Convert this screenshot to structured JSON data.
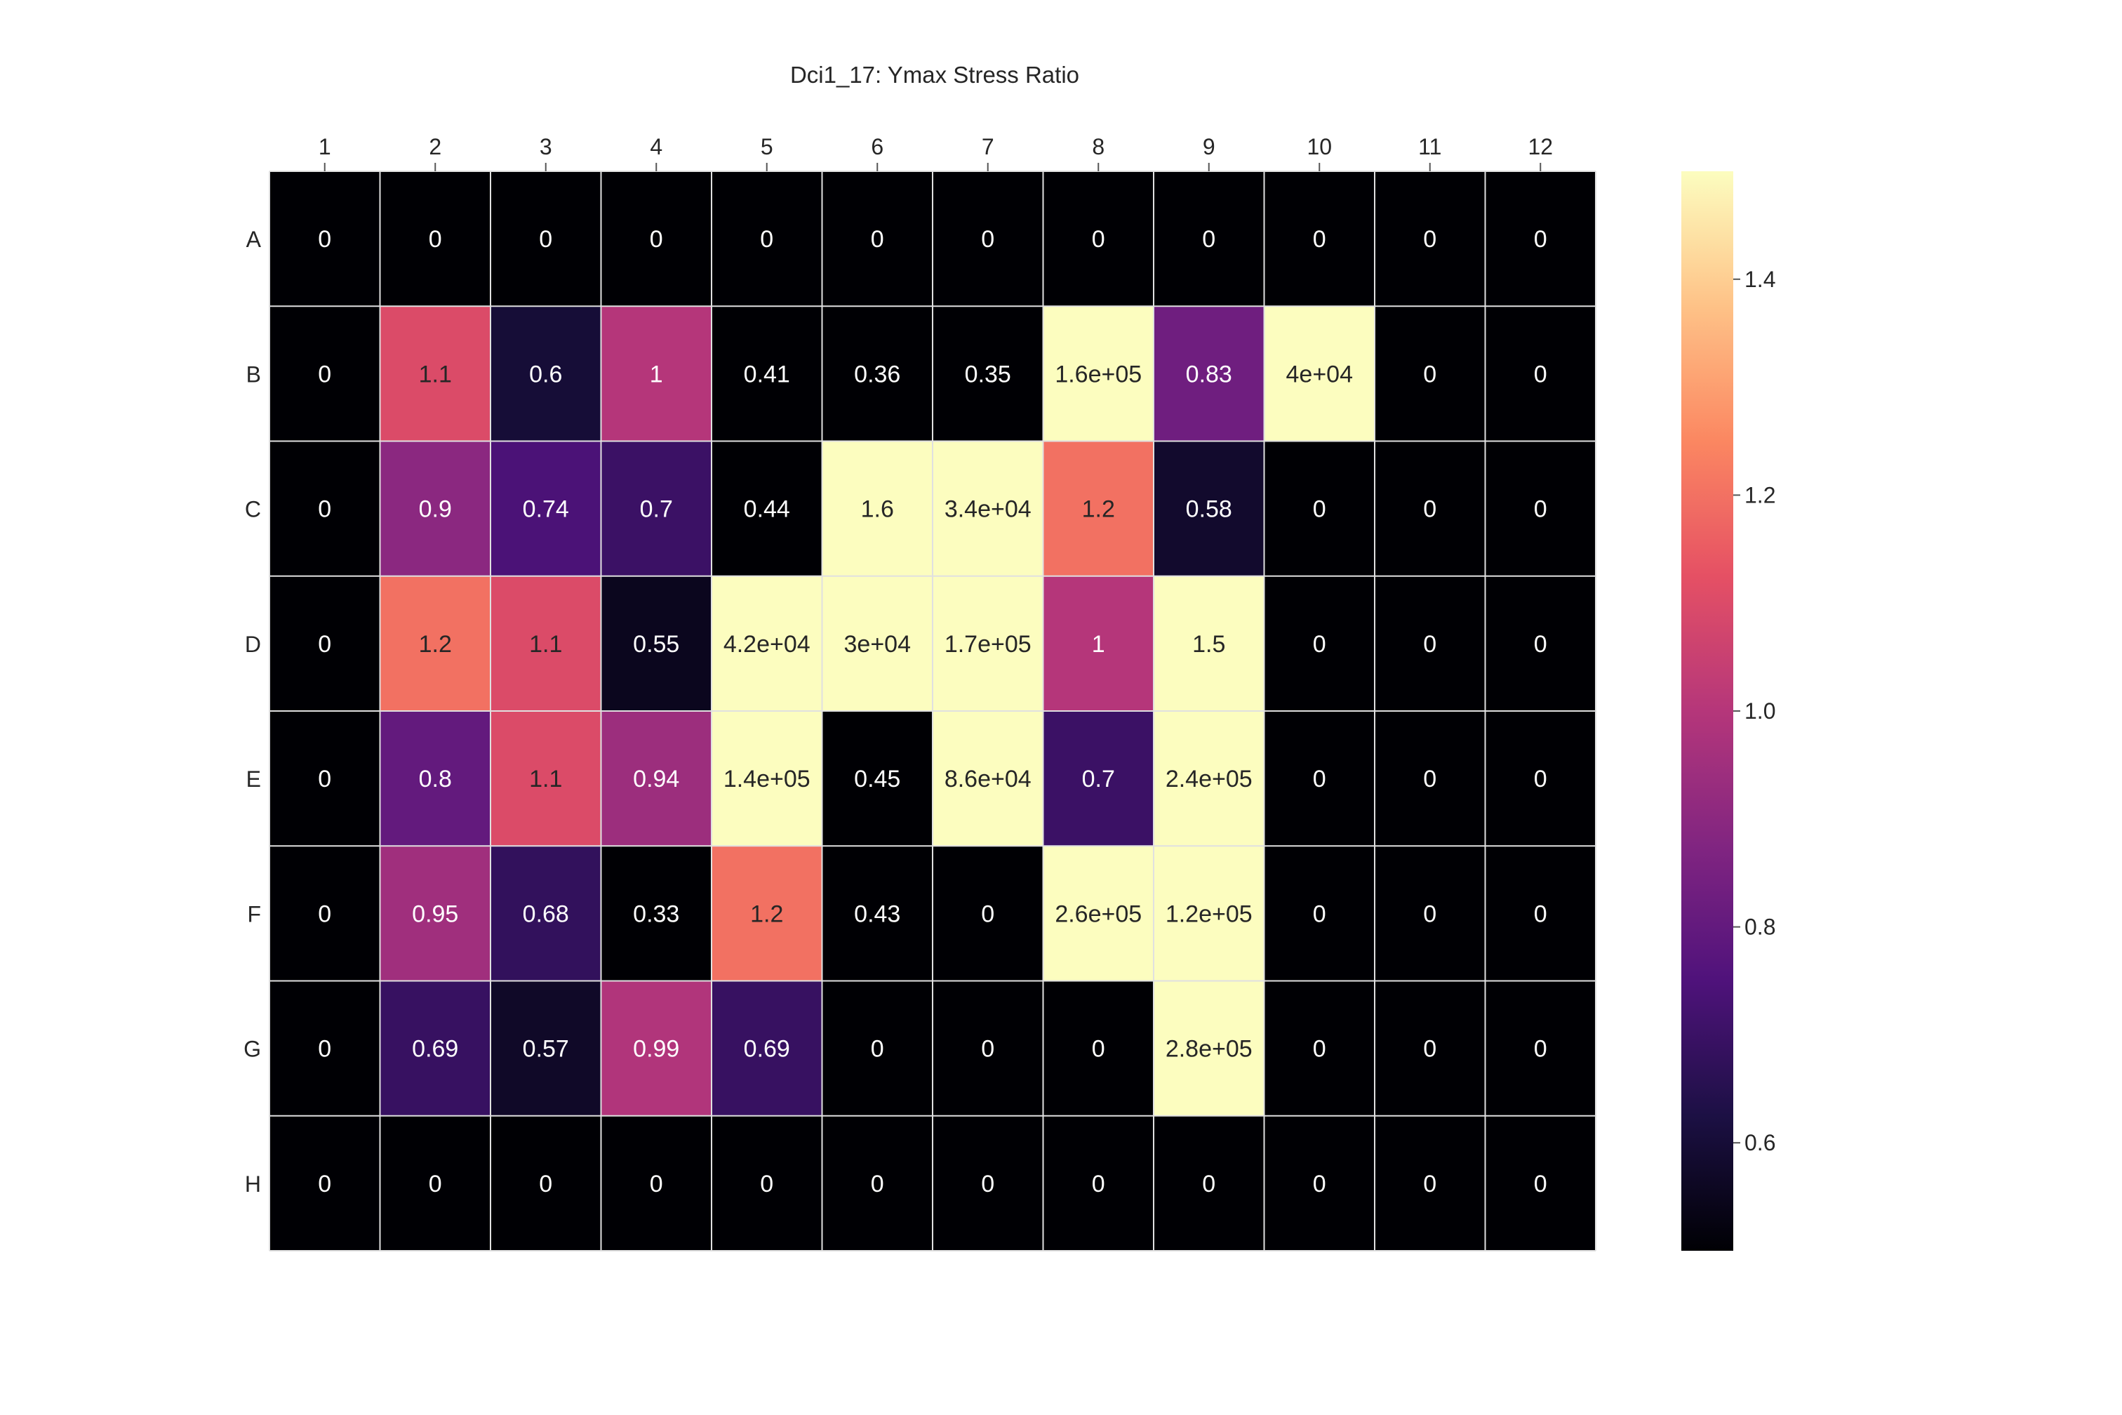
{
  "chart_data": {
    "type": "heatmap",
    "title": "Dci1_17: Ymax Stress Ratio",
    "x_tick_position": "top",
    "columns": [
      "1",
      "2",
      "3",
      "4",
      "5",
      "6",
      "7",
      "8",
      "9",
      "10",
      "11",
      "12"
    ],
    "rows": [
      "A",
      "B",
      "C",
      "D",
      "E",
      "F",
      "G",
      "H"
    ],
    "colormap": "magma",
    "color_range": [
      0.5,
      1.5
    ],
    "colorbar": {
      "ticks": [
        0.6,
        0.8,
        1.0,
        1.2,
        1.4
      ],
      "tick_labels": [
        "0.6",
        "0.8",
        "1.0",
        "1.2",
        "1.4"
      ],
      "placement": "right"
    },
    "grid": true,
    "grid_color": "#e0e0e0",
    "values": [
      [
        0,
        0,
        0,
        0,
        0,
        0,
        0,
        0,
        0,
        0,
        0,
        0
      ],
      [
        0,
        1.1,
        0.6,
        1,
        0.41,
        0.36,
        0.35,
        160000,
        0.83,
        40000,
        0,
        0
      ],
      [
        0,
        0.9,
        0.74,
        0.7,
        0.44,
        1.6,
        34000,
        1.2,
        0.58,
        0,
        0,
        0
      ],
      [
        0,
        1.2,
        1.1,
        0.55,
        42000,
        30000,
        170000,
        1,
        1.5,
        0,
        0,
        0
      ],
      [
        0,
        0.8,
        1.1,
        0.94,
        140000,
        0.45,
        86000,
        0.7,
        240000,
        0,
        0,
        0
      ],
      [
        0,
        0.95,
        0.68,
        0.33,
        1.2,
        0.43,
        0,
        260000,
        120000,
        0,
        0,
        0
      ],
      [
        0,
        0.69,
        0.57,
        0.99,
        0.69,
        0,
        0,
        0,
        280000,
        0,
        0,
        0
      ],
      [
        0,
        0,
        0,
        0,
        0,
        0,
        0,
        0,
        0,
        0,
        0,
        0
      ]
    ],
    "value_labels": [
      [
        "0",
        "0",
        "0",
        "0",
        "0",
        "0",
        "0",
        "0",
        "0",
        "0",
        "0",
        "0"
      ],
      [
        "0",
        "1.1",
        "0.6",
        "1",
        "0.41",
        "0.36",
        "0.35",
        "1.6e+05",
        "0.83",
        "4e+04",
        "0",
        "0"
      ],
      [
        "0",
        "0.9",
        "0.74",
        "0.7",
        "0.44",
        "1.6",
        "3.4e+04",
        "1.2",
        "0.58",
        "0",
        "0",
        "0"
      ],
      [
        "0",
        "1.2",
        "1.1",
        "0.55",
        "4.2e+04",
        "3e+04",
        "1.7e+05",
        "1",
        "1.5",
        "0",
        "0",
        "0"
      ],
      [
        "0",
        "0.8",
        "1.1",
        "0.94",
        "1.4e+05",
        "0.45",
        "8.6e+04",
        "0.7",
        "2.4e+05",
        "0",
        "0",
        "0"
      ],
      [
        "0",
        "0.95",
        "0.68",
        "0.33",
        "1.2",
        "0.43",
        "0",
        "2.6e+05",
        "1.2e+05",
        "0",
        "0",
        "0"
      ],
      [
        "0",
        "0.69",
        "0.57",
        "0.99",
        "0.69",
        "0",
        "0",
        "0",
        "2.8e+05",
        "0",
        "0",
        "0"
      ],
      [
        "0",
        "0",
        "0",
        "0",
        "0",
        "0",
        "0",
        "0",
        "0",
        "0",
        "0",
        "0"
      ]
    ]
  }
}
